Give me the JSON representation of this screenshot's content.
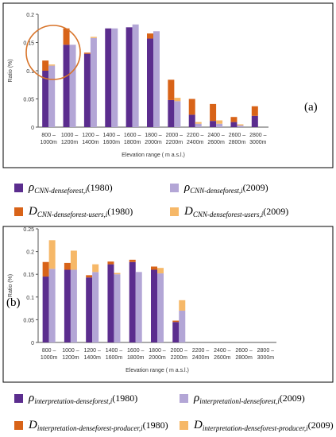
{
  "colors": {
    "purple_dark": "#5b2d8e",
    "purple_light": "#b3a6d6",
    "orange_dark": "#d86318",
    "orange_light": "#f6b868",
    "highlight_circle": "#d8742a"
  },
  "chart_data": [
    {
      "type": "bar",
      "panel_label": "(a)",
      "categories": [
        "800 –\n1000m",
        "1000 –\n1200m",
        "1200 –\n1400m",
        "1400 –\n1600m",
        "1600 –\n1800m",
        "1800 –\n2000m",
        "2000 –\n2200m",
        "2200 –\n2400m",
        "2400 –\n2600m",
        "2600 –\n2800m",
        "2800 –\n3000m"
      ],
      "ylabel": "Ratio (%)",
      "xlabel": "Elevation range ( m a.s.l.)",
      "ylim": [
        0,
        0.2
      ],
      "yticks": [
        "0",
        "0.05",
        "0.1",
        "0.15",
        "0.2"
      ],
      "series": [
        {
          "name": "ρ CNN-denseforest,i (1980)",
          "values": [
            0.1,
            0.146,
            0.13,
            0.175,
            0.177,
            0.157,
            0.048,
            0.022,
            0.011,
            0.009,
            0.02
          ]
        },
        {
          "name": "D CNN-denseforest-users,i (1980)",
          "values": [
            0.018,
            0.029,
            0.002,
            0.0,
            0.0,
            0.009,
            0.036,
            0.028,
            0.03,
            0.009,
            0.017
          ]
        },
        {
          "name": "ρ CNN-denseforest,i (2009)",
          "values": [
            0.109,
            0.146,
            0.158,
            0.175,
            0.182,
            0.17,
            0.046,
            0.006,
            0.006,
            0.003,
            0.0
          ]
        },
        {
          "name": "D CNN-denseforest-users,i (2009)",
          "values": [
            0.002,
            0.0,
            0.002,
            0.0,
            0.0,
            0.0,
            0.006,
            0.003,
            0.006,
            0.002,
            0.0
          ]
        }
      ],
      "annotation": "circle"
    },
    {
      "type": "bar",
      "panel_label": "(b)",
      "categories": [
        "800 –\n1000m",
        "1000 –\n1200m",
        "1200 –\n1400m",
        "1400 –\n1600m",
        "1600 –\n1800m",
        "1800 –\n2000m",
        "2000 –\n2200m",
        "2200 –\n2400m",
        "2400 –\n2600m",
        "2600 –\n2800m",
        "2800 –\n3000m"
      ],
      "ylabel": "Ratio (%)",
      "xlabel": "Elevation range ( m a.s.l.)",
      "ylim": [
        0,
        0.25
      ],
      "yticks": [
        "0",
        "0.05",
        "0.1",
        "0.15",
        "0.2",
        "0.25"
      ],
      "series": [
        {
          "name": "ρ interpretation-denseforest,i (1980)",
          "values": [
            0.145,
            0.16,
            0.143,
            0.172,
            0.177,
            0.16,
            0.045,
            0,
            0,
            0,
            0
          ]
        },
        {
          "name": "D interpretation-denseforest-producer,i (1980)",
          "values": [
            0.032,
            0.015,
            0.005,
            0.006,
            0.005,
            0.007,
            0.003,
            0,
            0,
            0,
            0
          ]
        },
        {
          "name": "ρ interpretationl-denseforest,i (2009)",
          "values": [
            0.162,
            0.16,
            0.155,
            0.15,
            0.155,
            0.152,
            0.07,
            0,
            0,
            0,
            0
          ]
        },
        {
          "name": "D interpretation-denseforest-producer,i (2009)",
          "values": [
            0.063,
            0.042,
            0.017,
            0.003,
            0.0,
            0.012,
            0.023,
            0,
            0,
            0,
            0
          ]
        }
      ]
    }
  ],
  "legend_a": [
    {
      "sym": "ρ",
      "sub": "CNN-denseforest,i",
      "year": "(1980)",
      "color": "purple_dark"
    },
    {
      "sym": "ρ",
      "sub": "CNN-denseforest,i",
      "year": "(2009)",
      "color": "purple_light"
    },
    {
      "sym": "D",
      "sub": "CNN-denseforest-users,i",
      "year": "(1980)",
      "color": "orange_dark"
    },
    {
      "sym": "D",
      "sub": "CNN-denseforest-users,i",
      "year": "(2009)",
      "color": "orange_light"
    }
  ],
  "legend_b": [
    {
      "sym": "ρ",
      "sub": "interpretation-denseforest,i",
      "year": "(1980)",
      "color": "purple_dark"
    },
    {
      "sym": "ρ",
      "sub": "interpretationl-denseforest,i",
      "year": "(2009)",
      "color": "purple_light"
    },
    {
      "sym": "D",
      "sub": "interpretation-denseforest-producer,i",
      "year": "(1980)",
      "color": "orange_dark"
    },
    {
      "sym": "D",
      "sub": "interpretation-denseforest-producer,i",
      "year": "(2009)",
      "color": "orange_light"
    }
  ]
}
